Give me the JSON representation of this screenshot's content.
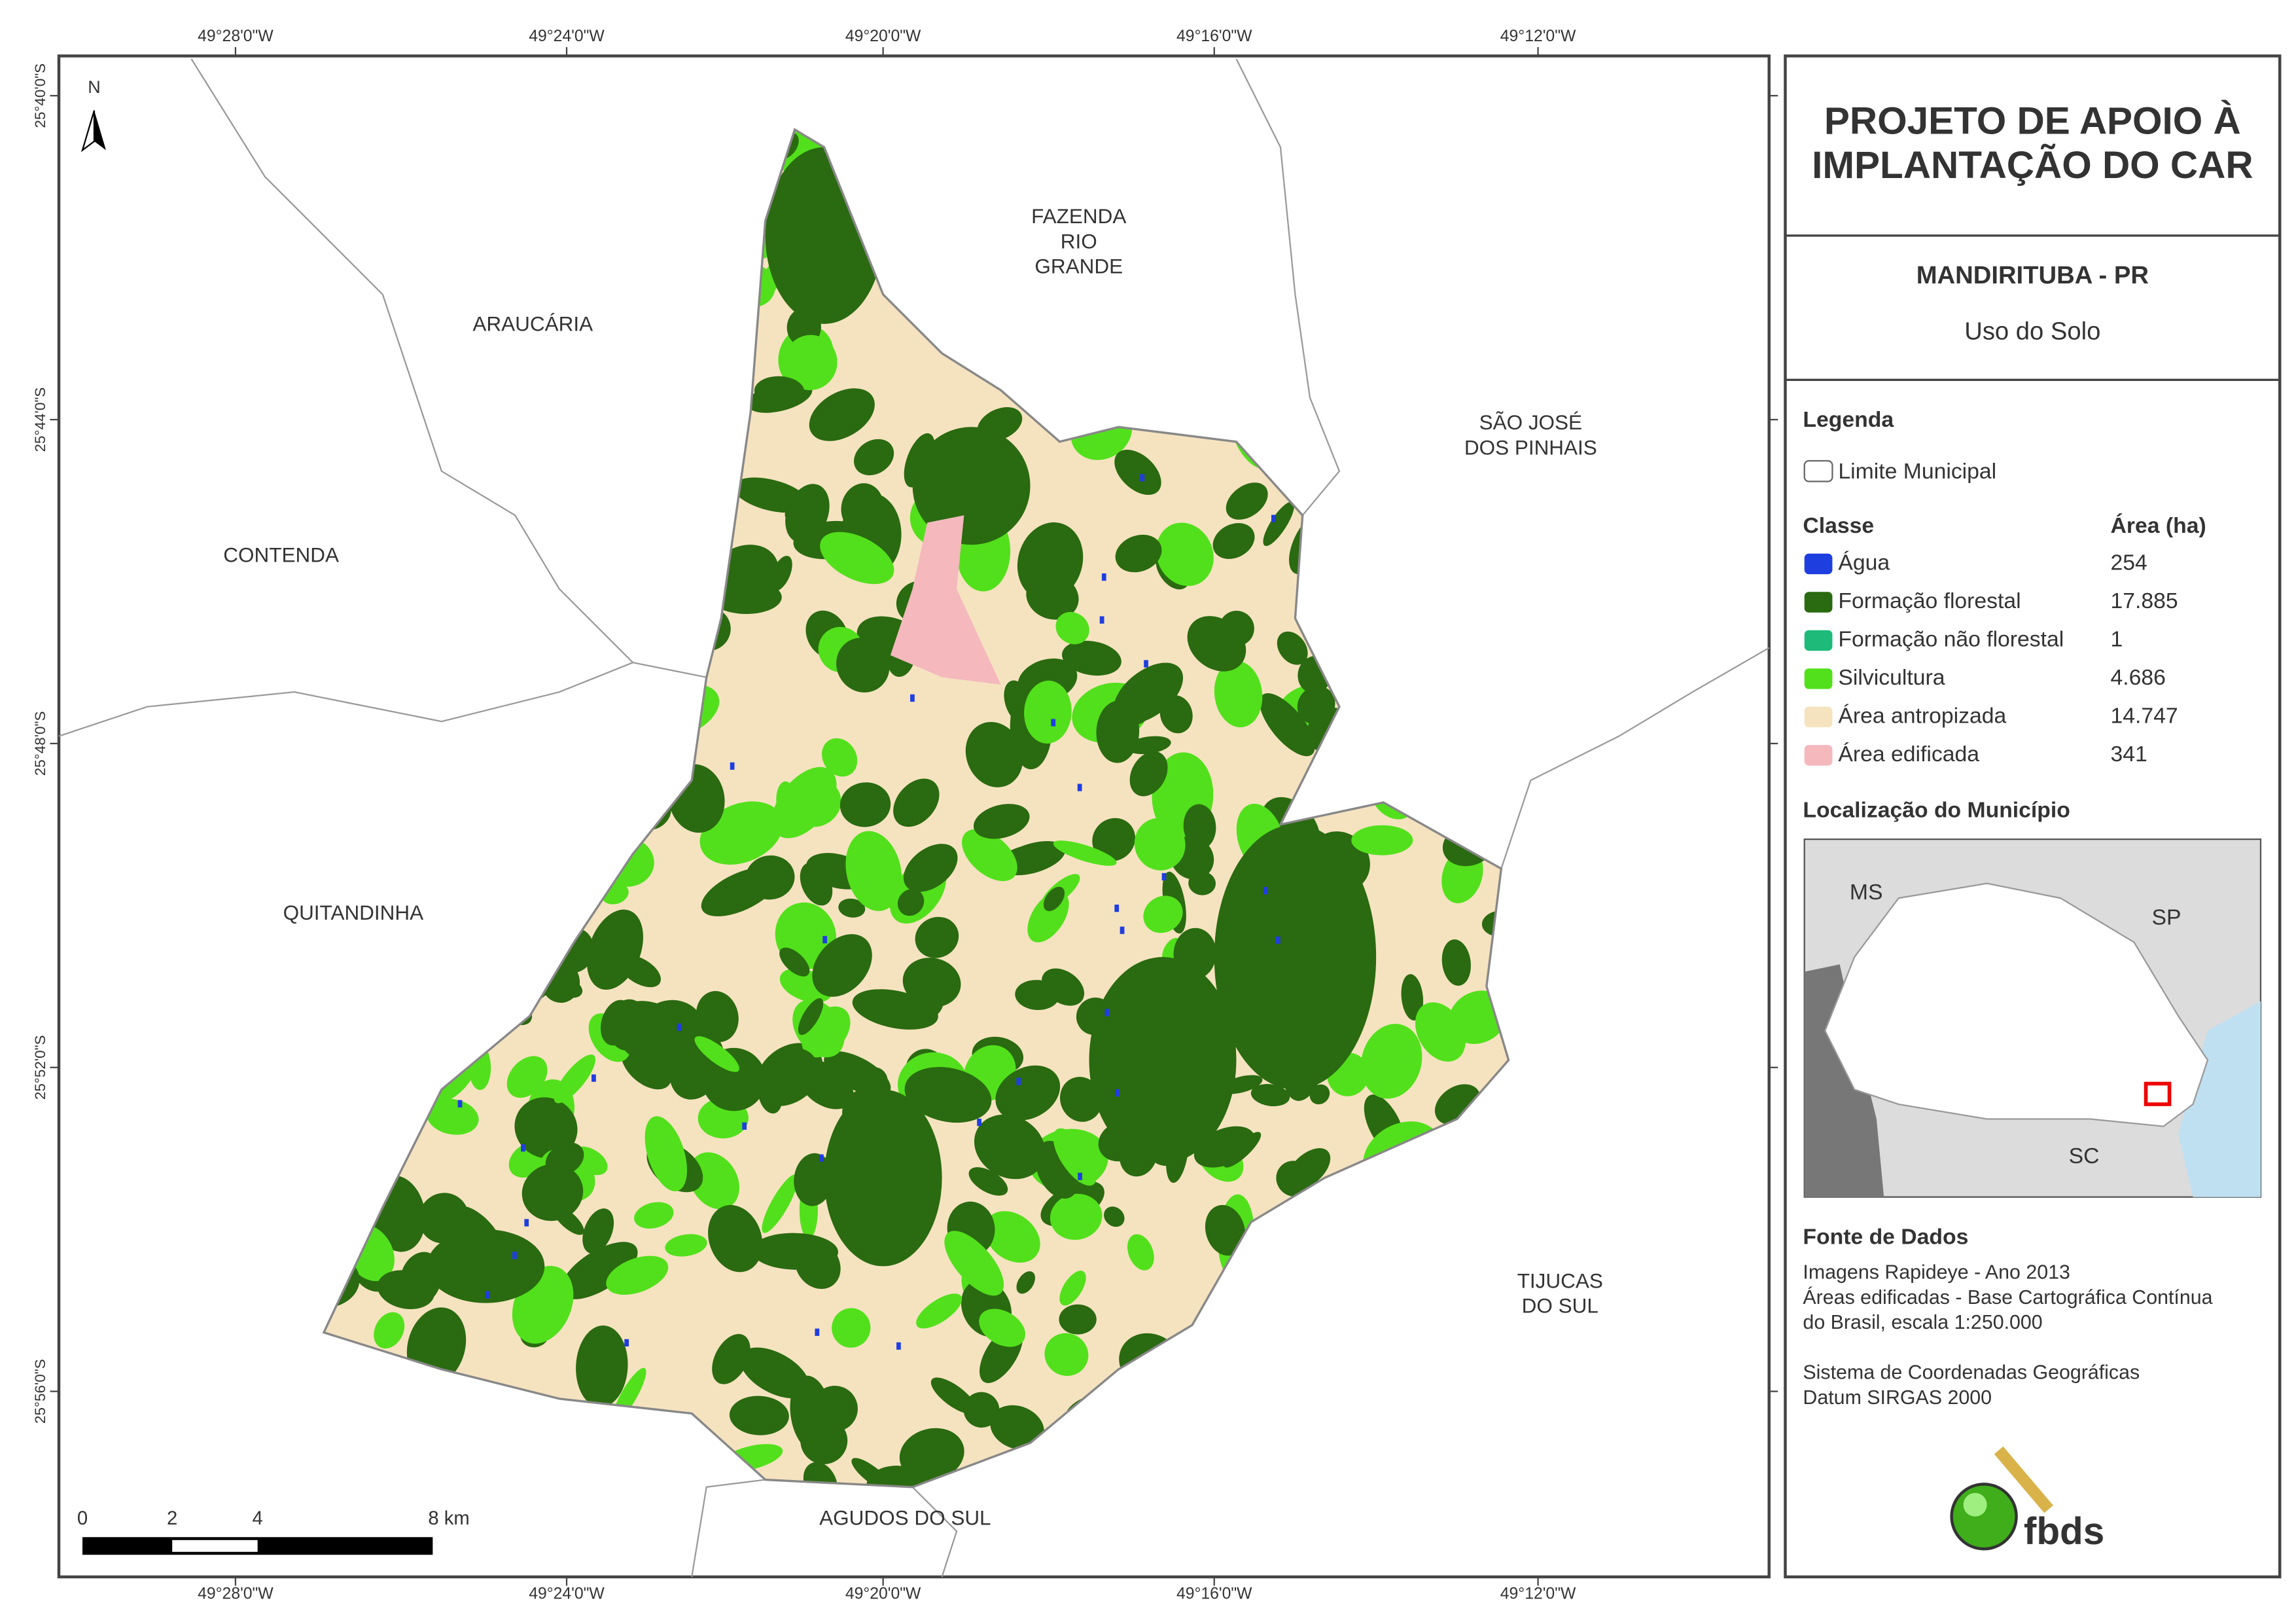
{
  "map": {
    "lon_labels": [
      "49°28'0\"W",
      "49°24'0\"W",
      "49°20'0\"W",
      "49°16'0\"W",
      "49°12'0\"W"
    ],
    "lat_labels": [
      "25°40'0\"S",
      "25°44'0\"S",
      "25°48'0\"S",
      "25°52'0\"S",
      "25°56'0\"S"
    ],
    "north": "N",
    "places": [
      {
        "lines": [
          "FAZENDA",
          "RIO",
          "GRANDE"
        ]
      },
      {
        "lines": [
          "ARAUCÁRIA"
        ]
      },
      {
        "lines": [
          "SÃO JOSÉ",
          "DOS PINHAIS"
        ]
      },
      {
        "lines": [
          "CONTENDA"
        ]
      },
      {
        "lines": [
          "QUITANDINHA"
        ]
      },
      {
        "lines": [
          "TIJUCAS",
          "DO SUL"
        ]
      },
      {
        "lines": [
          "AGUDOS DO SUL"
        ]
      }
    ],
    "scale_labels": [
      "0",
      "2",
      "4",
      "8 km"
    ]
  },
  "panel": {
    "title_lines": [
      "PROJETO DE APOIO À",
      "IMPLANTAÇÃO DO CAR"
    ],
    "municipality": "MANDIRITUBA - PR",
    "subtitle": "Uso do Solo",
    "legend_title": "Legenda",
    "boundary_label": "Limite Municipal",
    "class_header": "Classe",
    "area_header": "Área (ha)",
    "classes": [
      {
        "name": "Água",
        "area": "254",
        "color": "#1f3ee0"
      },
      {
        "name": "Formação florestal",
        "area": "17.885",
        "color": "#2a6a10"
      },
      {
        "name": "Formação não florestal",
        "area": "1",
        "color": "#1dba7a"
      },
      {
        "name": "Silvicultura",
        "area": "4.686",
        "color": "#52e01c"
      },
      {
        "name": "Área antropizada",
        "area": "14.747",
        "color": "#f5e3c0"
      },
      {
        "name": "Área edificada",
        "area": "341",
        "color": "#f4b8bd"
      }
    ],
    "location_title": "Localização do Município",
    "location_labels": [
      "MS",
      "SP",
      "SC"
    ],
    "source_title": "Fonte de Dados",
    "source_lines": [
      "Imagens Rapideye - Ano 2013",
      "Áreas edificadas - Base Cartográfica Contínua",
      "do Brasil, escala 1:250.000",
      "",
      "Sistema de Coordenadas Geográficas",
      "Datum SIRGAS 2000"
    ],
    "logo": "fbds"
  }
}
